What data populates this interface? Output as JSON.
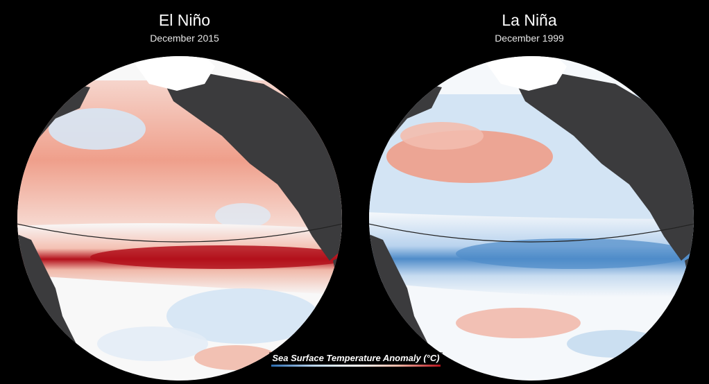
{
  "panels": [
    {
      "title": "El Niño",
      "subtitle": "December 2015",
      "anomaly": "warm"
    },
    {
      "title": "La Niña",
      "subtitle": "December 1999",
      "anomaly": "cool"
    }
  ],
  "legend": {
    "label": "Sea Surface Temperature Anomaly (°C)"
  },
  "colors": {
    "background": "#000000",
    "land": "#3b3b3d",
    "ice": "#ffffff",
    "warm_strong": "#b3111b",
    "warm_light": "#f2b7a6",
    "cool_strong": "#2e6db3",
    "cool_light": "#c9def2",
    "neutral": "#f8f8f8"
  }
}
